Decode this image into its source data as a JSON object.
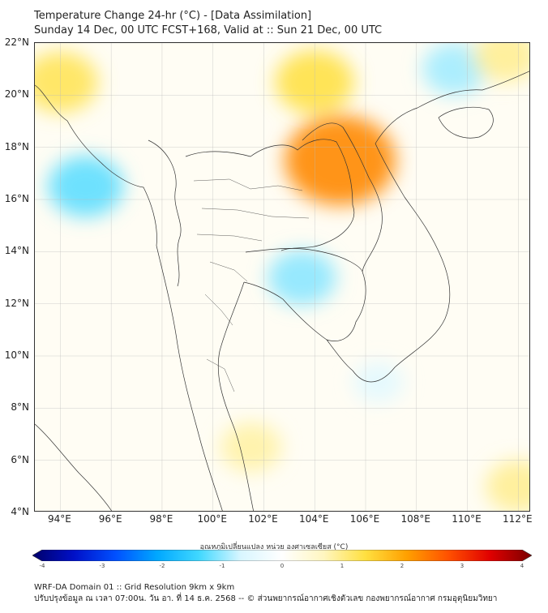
{
  "title": {
    "line1": "Temperature Change 24-hr (°C) - [Data Assimilation]",
    "line2": "Sunday 14 Dec, 00 UTC FCST+168, Valid at :: Sun 21 Dec, 00 UTC"
  },
  "map": {
    "extent": {
      "lon": [
        93,
        112.5
      ],
      "lat": [
        4,
        22
      ]
    },
    "lat_ticks": [
      "22°N",
      "20°N",
      "18°N",
      "16°N",
      "14°N",
      "12°N",
      "10°N",
      "8°N",
      "6°N",
      "4°N"
    ],
    "lon_ticks": [
      "94°E",
      "96°E",
      "98°E",
      "100°E",
      "102°E",
      "104°E",
      "106°E",
      "108°E",
      "110°E",
      "112°E"
    ],
    "lat_values": [
      22,
      20,
      18,
      16,
      14,
      12,
      10,
      8,
      6,
      4
    ],
    "lon_values": [
      94,
      96,
      98,
      100,
      102,
      104,
      106,
      108,
      110,
      112
    ],
    "field_summary": [
      {
        "lon": 105,
        "lat": 17.5,
        "value": 2.2
      },
      {
        "lon": 104,
        "lat": 20.5,
        "value": 1.3
      },
      {
        "lon": 94,
        "lat": 20.5,
        "value": 1.2
      },
      {
        "lon": 95,
        "lat": 16.5,
        "value": -1.2
      },
      {
        "lon": 103.5,
        "lat": 13,
        "value": -1.0
      },
      {
        "lon": 109.5,
        "lat": 21,
        "value": -0.9
      },
      {
        "lon": 111.5,
        "lat": 21.5,
        "value": 0.9
      },
      {
        "lon": 106.5,
        "lat": 9,
        "value": -0.5
      },
      {
        "lon": 101.5,
        "lat": 6.5,
        "value": 0.8
      },
      {
        "lon": 112,
        "lat": 5,
        "value": 0.9
      }
    ]
  },
  "colorbar": {
    "label": "อุณหภูมิเปลี่ยนแปลง หน่วย องศาเซลเซียส (°C)",
    "min": -4,
    "max": 4,
    "ticks": [
      "-4",
      "-3",
      "-2",
      "-1",
      "0",
      "1",
      "2",
      "3",
      "4"
    ],
    "tick_values": [
      -4,
      -3,
      -2,
      -1,
      0,
      1,
      2,
      3,
      4
    ],
    "colors": [
      "#00006a",
      "#0010c8",
      "#0050ff",
      "#00a8ff",
      "#40d8ff",
      "#d8f6ff",
      "#ffffff",
      "#fff6c0",
      "#ffe040",
      "#ffa000",
      "#ff5000",
      "#e00000",
      "#7a0000"
    ]
  },
  "footer": {
    "line1": "WRF-DA Domain 01 :: Grid Resolution 9km x 9km",
    "line2": "ปรับปรุงข้อมูล ณ เวลา 07:00น. วัน อา. ที่ 14 ธ.ค. 2568 -- © ส่วนพยากรณ์อากาศเชิงตัวเลข กองพยากรณ์อากาศ กรมอุตุนิยมวิทยา"
  }
}
